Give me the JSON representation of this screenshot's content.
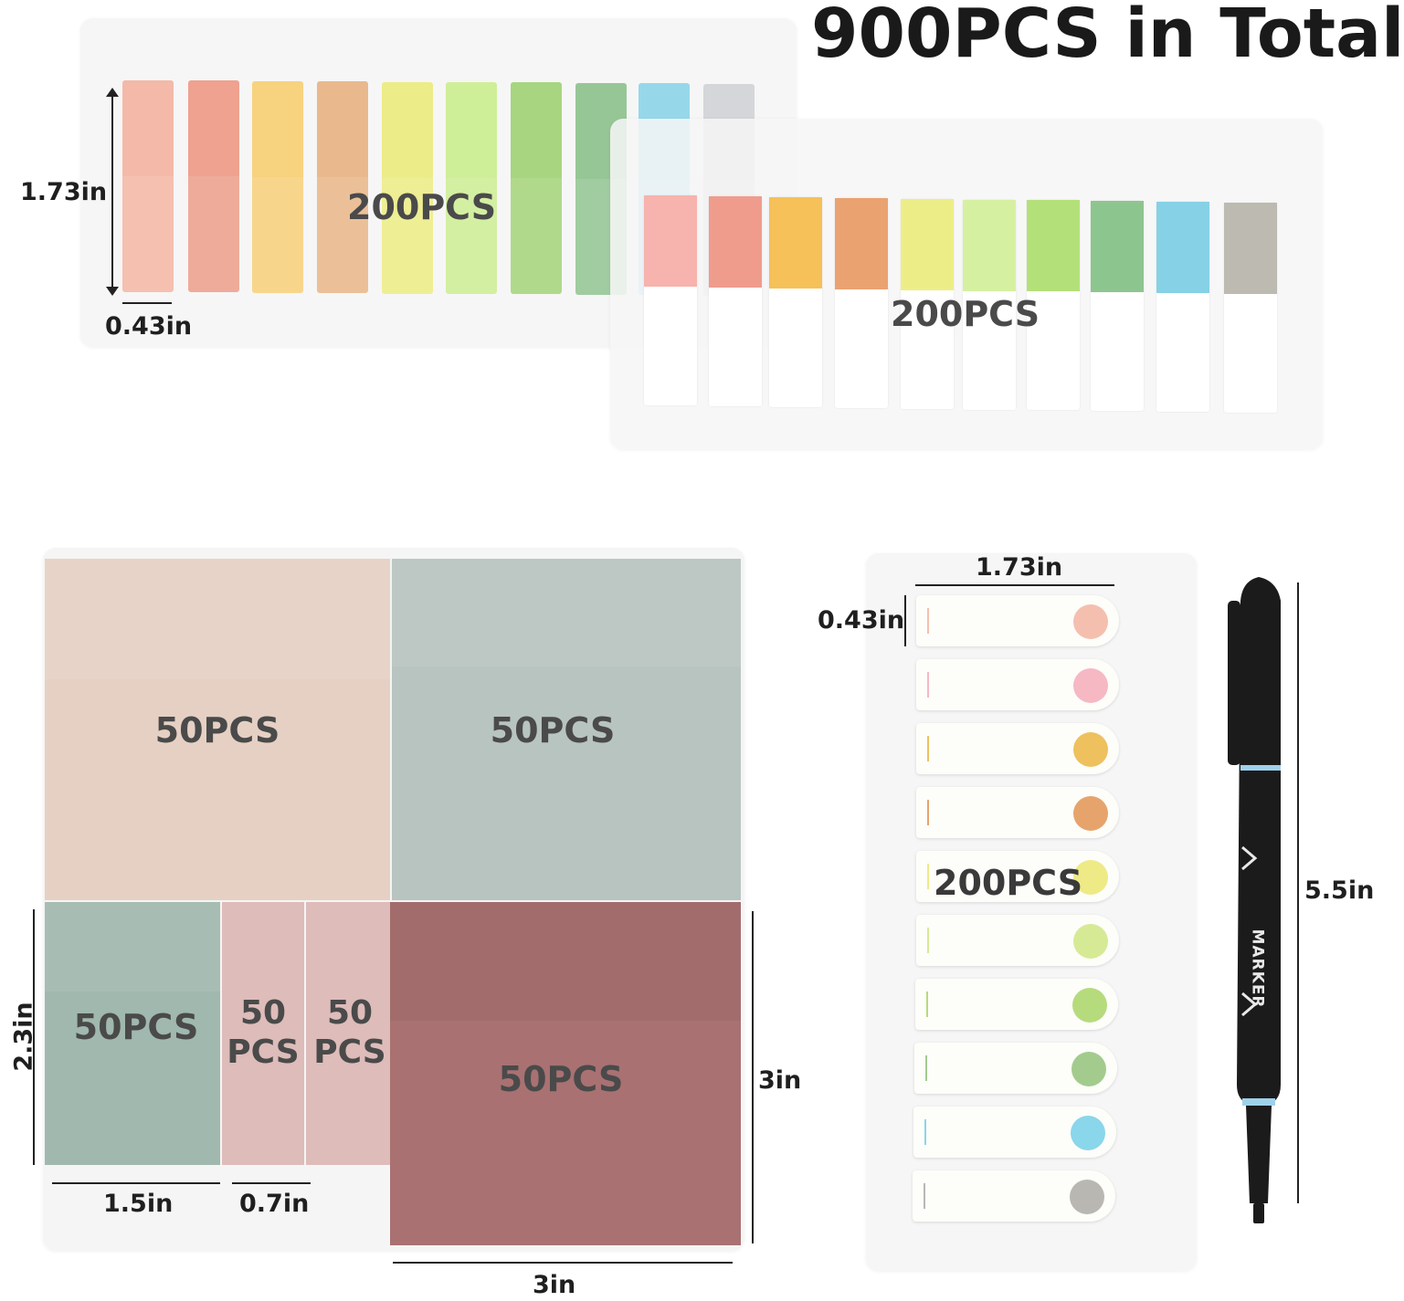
{
  "title": "900PCS in Total",
  "set_narrow_tabs": {
    "quantity": "200PCS",
    "height_label": "1.73in",
    "width_label": "0.43in",
    "colors": [
      "#f4b9a8",
      "#eea28f",
      "#f7d27f",
      "#e9b98d",
      "#ecec88",
      "#cfee98",
      "#a8d57f",
      "#97c696",
      "#96d8ea",
      "#d4d6da"
    ]
  },
  "set_wide_tabs": {
    "quantity": "200PCS",
    "colors": [
      "#f7b3ad",
      "#ef9c8d",
      "#f5c158",
      "#eaa271",
      "#eded88",
      "#d6f0a2",
      "#b4e07a",
      "#8dc58f",
      "#86d1e6",
      "#bcbab1"
    ]
  },
  "set_pads": {
    "pads": [
      {
        "qty": "50PCS",
        "color": "#e6d0c4"
      },
      {
        "qty": "50PCS",
        "color": "#b8c4bf"
      },
      {
        "qty": "50PCS",
        "color": "#a0b8ad"
      },
      {
        "qty_line1": "50",
        "qty_line2": "PCS",
        "color": "#ddbcba"
      },
      {
        "qty_line1": "50",
        "qty_line2": "PCS",
        "color": "#ddbcba"
      },
      {
        "qty": "50PCS",
        "color": "#a97172"
      }
    ],
    "dims": {
      "small_height": "2.3in",
      "small_width": "1.5in",
      "strip_width": "0.7in",
      "large_height": "3in",
      "large_width": "3in"
    }
  },
  "set_flags": {
    "quantity": "200PCS",
    "length_label": "1.73in",
    "height_label": "0.43in",
    "dot_colors": [
      "#f4bfae",
      "#f6b8c3",
      "#eec15e",
      "#e6a46c",
      "#eeea86",
      "#d6ea96",
      "#b6db7c",
      "#a3cb8e",
      "#8ad6ea",
      "#b9b7b2"
    ]
  },
  "marker": {
    "brand_text": "MARKER",
    "length_label": "5.5in",
    "colors": {
      "body": "#1b1b1b",
      "accent": "#9fd1ea"
    }
  }
}
